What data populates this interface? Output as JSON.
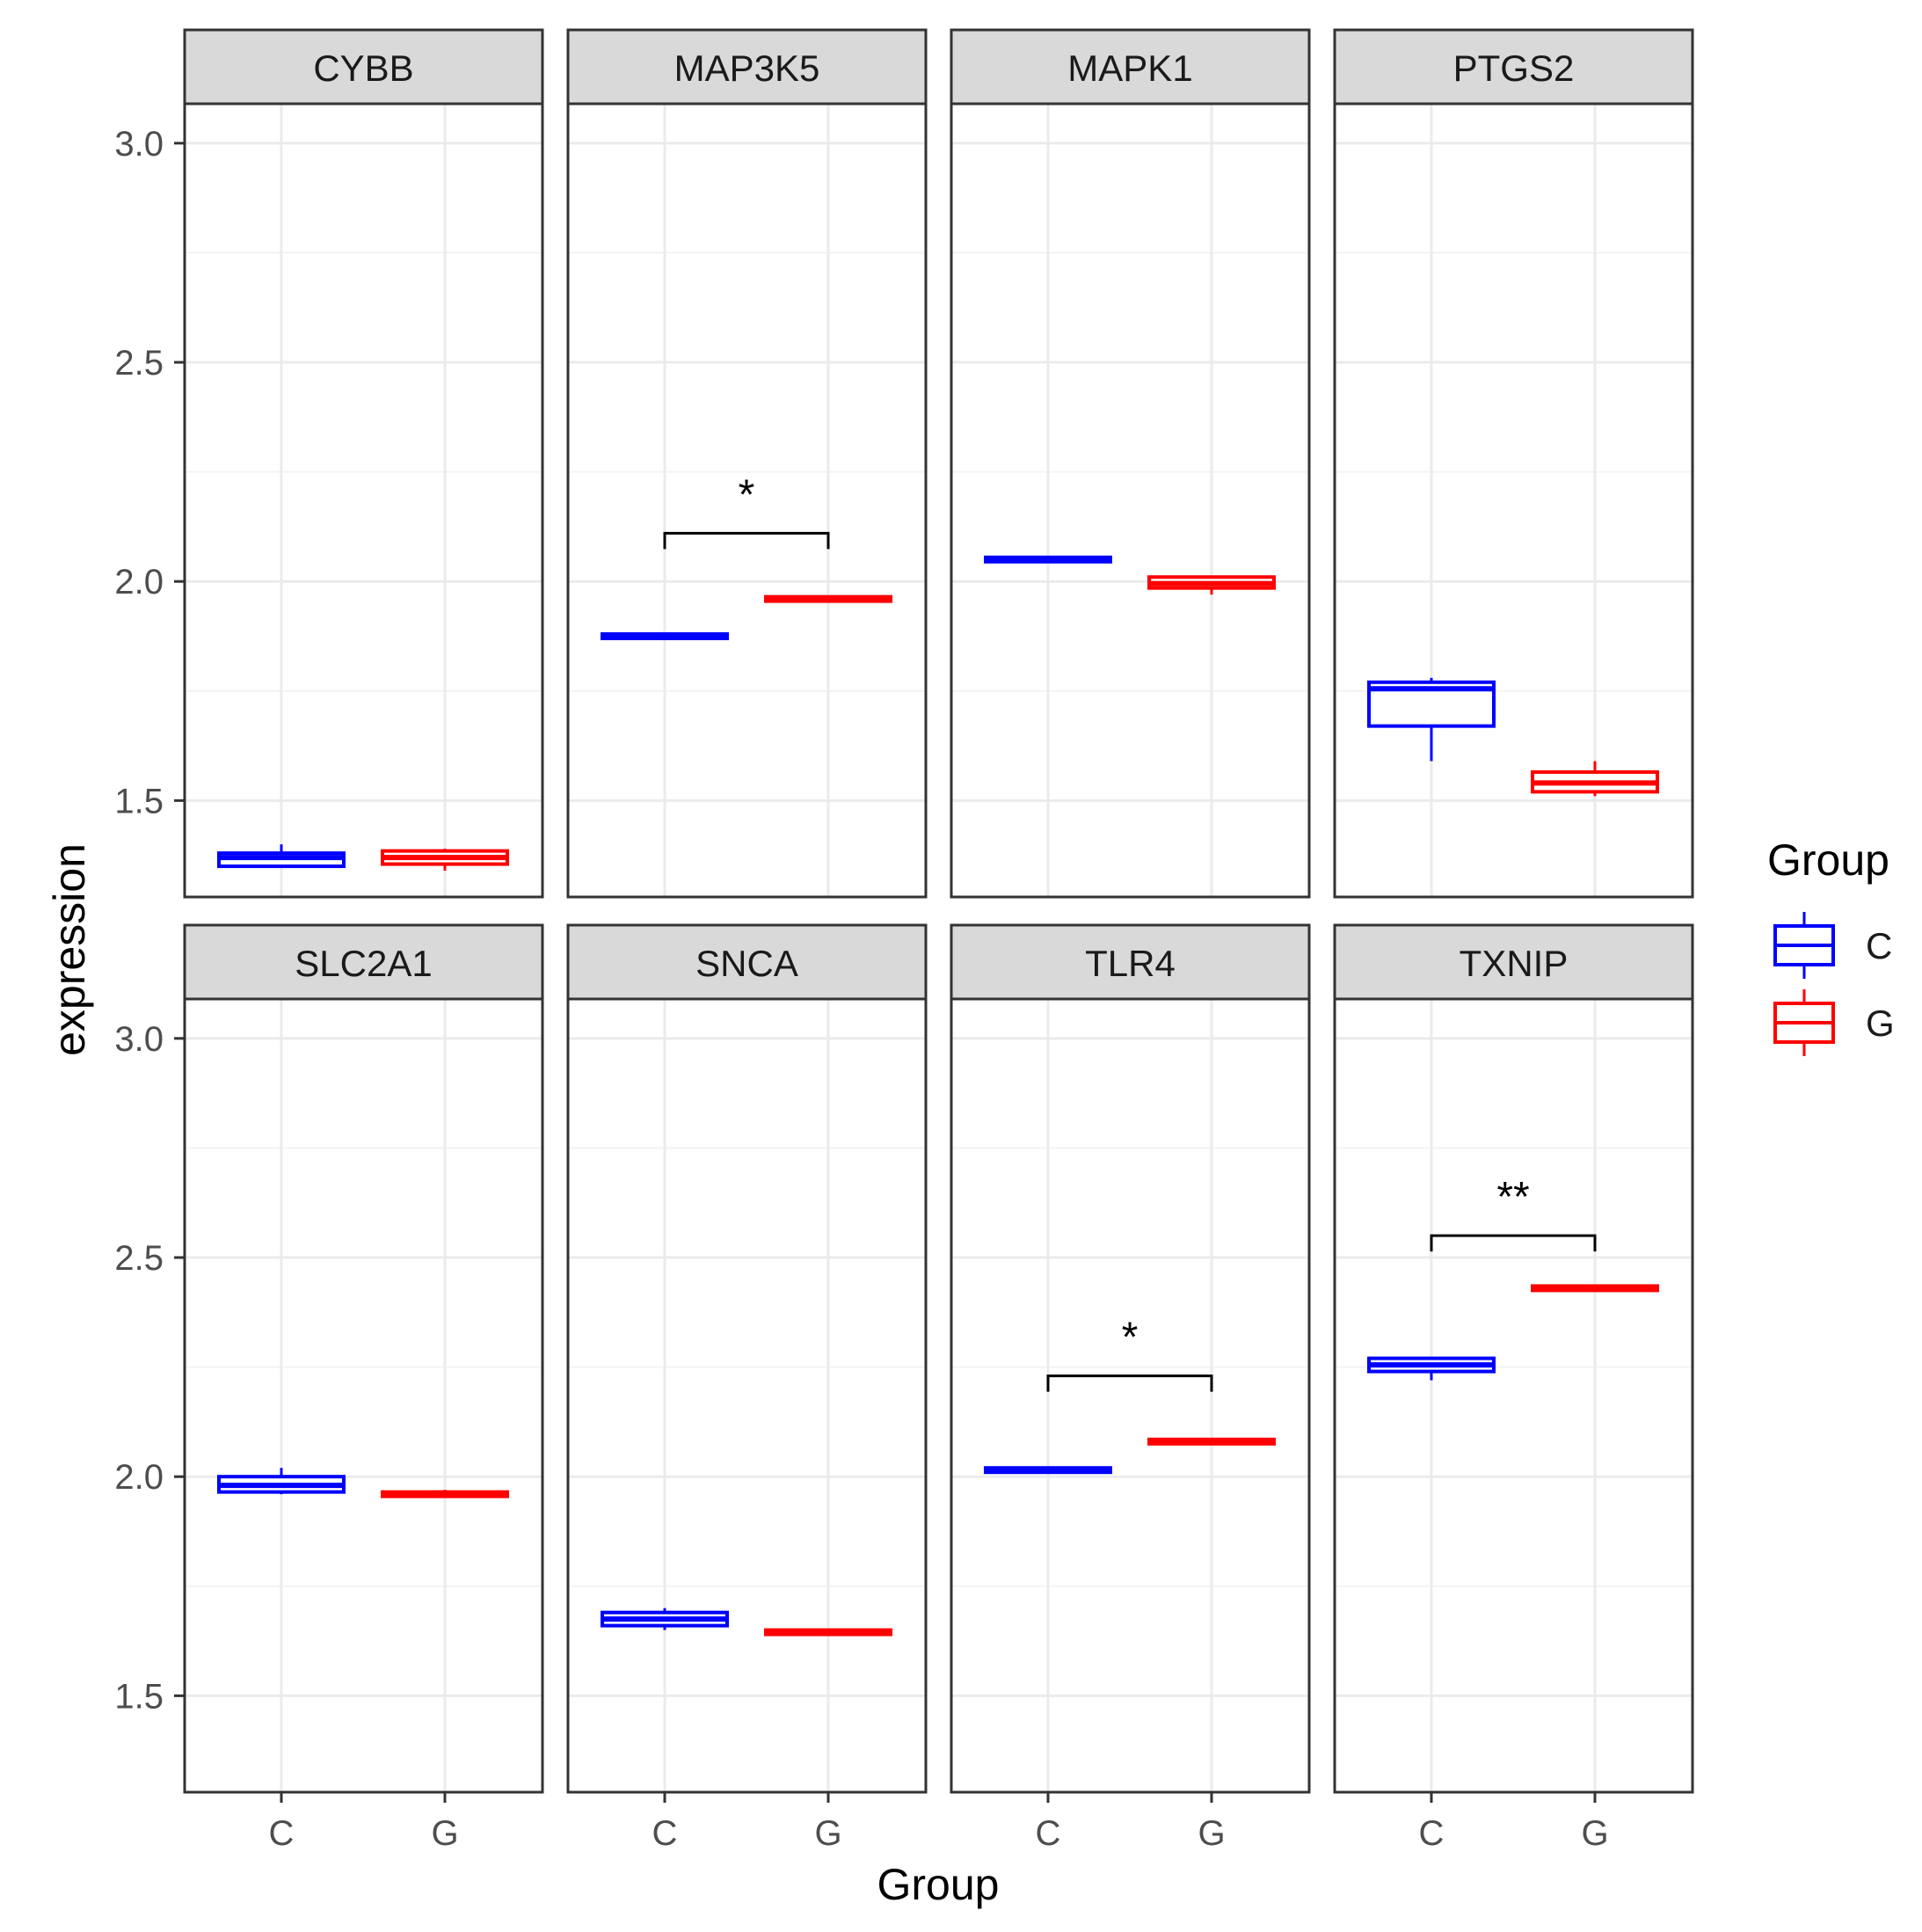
{
  "chart_data": {
    "type": "boxplot",
    "layout": {
      "rows": 2,
      "cols": 4
    },
    "xlabel": "Group",
    "ylabel": "expression",
    "ylim": [
      1.28,
      3.09
    ],
    "yticks": [
      "1.5",
      "2.0",
      "2.5",
      "3.0"
    ],
    "ytick_values": [
      1.5,
      2.0,
      2.5,
      3.0
    ],
    "minor_grid": [
      1.75,
      2.25,
      2.75
    ],
    "categories": [
      "C",
      "G"
    ],
    "legend": {
      "title": "Group",
      "position": "right",
      "items": [
        {
          "label": "C",
          "color": "#0000ff"
        },
        {
          "label": "G",
          "color": "#ff0000"
        }
      ]
    },
    "colors": {
      "C": "#0000ff",
      "G": "#ff0000",
      "strip_bg": "#d9d9d9",
      "grid": "#ebebeb",
      "border": "#333333"
    },
    "facets": [
      {
        "gene": "CYBB",
        "boxes": [
          {
            "group": "C",
            "min": 1.35,
            "q1": 1.35,
            "median": 1.37,
            "q3": 1.38,
            "max": 1.4
          },
          {
            "group": "G",
            "min": 1.34,
            "q1": 1.355,
            "median": 1.37,
            "q3": 1.385,
            "max": 1.39
          }
        ],
        "sig": null
      },
      {
        "gene": "MAP3K5",
        "boxes": [
          {
            "group": "C",
            "min": 1.87,
            "q1": 1.87,
            "median": 1.875,
            "q3": 1.88,
            "max": 1.88
          },
          {
            "group": "G",
            "min": 1.955,
            "q1": 1.955,
            "median": 1.96,
            "q3": 1.965,
            "max": 1.965
          }
        ],
        "sig": {
          "label": "*",
          "y": 2.11
        }
      },
      {
        "gene": "MAPK1",
        "boxes": [
          {
            "group": "C",
            "min": 2.045,
            "q1": 2.045,
            "median": 2.05,
            "q3": 2.055,
            "max": 2.055
          },
          {
            "group": "G",
            "min": 1.97,
            "q1": 1.985,
            "median": 1.995,
            "q3": 2.01,
            "max": 2.01
          }
        ],
        "sig": null
      },
      {
        "gene": "PTGS2",
        "boxes": [
          {
            "group": "C",
            "min": 1.59,
            "q1": 1.67,
            "median": 1.755,
            "q3": 1.77,
            "max": 1.78
          },
          {
            "group": "G",
            "min": 1.51,
            "q1": 1.52,
            "median": 1.54,
            "q3": 1.565,
            "max": 1.59
          }
        ],
        "sig": null
      },
      {
        "gene": "SLC2A1",
        "boxes": [
          {
            "group": "C",
            "min": 1.96,
            "q1": 1.965,
            "median": 1.98,
            "q3": 2.0,
            "max": 2.02
          },
          {
            "group": "G",
            "min": 1.955,
            "q1": 1.955,
            "median": 1.96,
            "q3": 1.965,
            "max": 1.97
          }
        ],
        "sig": null
      },
      {
        "gene": "SNCA",
        "boxes": [
          {
            "group": "C",
            "min": 1.65,
            "q1": 1.66,
            "median": 1.675,
            "q3": 1.69,
            "max": 1.7
          },
          {
            "group": "G",
            "min": 1.64,
            "q1": 1.64,
            "median": 1.645,
            "q3": 1.65,
            "max": 1.65
          }
        ],
        "sig": null
      },
      {
        "gene": "TLR4",
        "boxes": [
          {
            "group": "C",
            "min": 2.01,
            "q1": 2.01,
            "median": 2.015,
            "q3": 2.02,
            "max": 2.02
          },
          {
            "group": "G",
            "min": 2.075,
            "q1": 2.075,
            "median": 2.08,
            "q3": 2.085,
            "max": 2.085
          }
        ],
        "sig": {
          "label": "*",
          "y": 2.23
        }
      },
      {
        "gene": "TXNIP",
        "boxes": [
          {
            "group": "C",
            "min": 2.22,
            "q1": 2.24,
            "median": 2.255,
            "q3": 2.27,
            "max": 2.27
          },
          {
            "group": "G",
            "min": 2.425,
            "q1": 2.425,
            "median": 2.43,
            "q3": 2.435,
            "max": 2.435
          }
        ],
        "sig": {
          "label": "**",
          "y": 2.55
        }
      }
    ]
  }
}
